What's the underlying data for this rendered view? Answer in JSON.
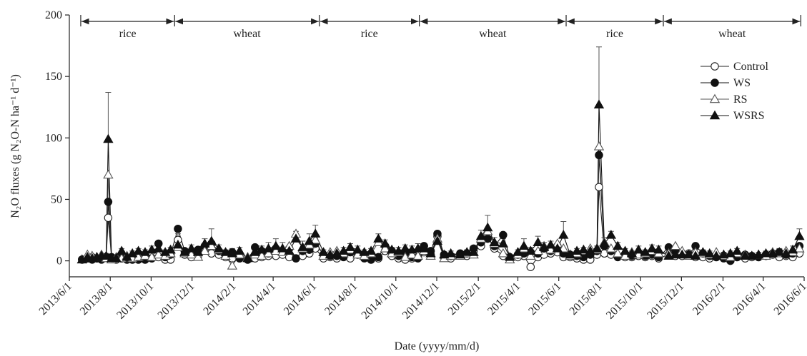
{
  "chart_data": {
    "type": "line",
    "xlabel": "Date (yyyy/mm/d)",
    "ylabel": "N₂O fluxes (g N₂O-N ha⁻¹ d⁻¹)",
    "xlim": [
      "2013/6/1",
      "2016/6/1"
    ],
    "xticks": [
      "2013/6/1",
      "2013/8/1",
      "2013/10/1",
      "2013/12/1",
      "2014/2/1",
      "2014/4/1",
      "2014/6/1",
      "2014/8/1",
      "2014/10/1",
      "2014/12/1",
      "2015/2/1",
      "2015/4/1",
      "2015/6/1",
      "2015/8/1",
      "2015/10/1",
      "2015/12/1",
      "2016/2/1",
      "2016/4/1",
      "2016/6/1"
    ],
    "ylim": [
      -13,
      200
    ],
    "yticks": [
      0,
      50,
      100,
      150,
      200
    ],
    "legend": "upper right",
    "seasons": [
      {
        "label": "rice",
        "start": "2013/6/18",
        "end": "2013/11/5"
      },
      {
        "label": "wheat",
        "start": "2013/11/5",
        "end": "2014/6/9"
      },
      {
        "label": "rice",
        "start": "2014/6/9",
        "end": "2014/11/5"
      },
      {
        "label": "wheat",
        "start": "2014/11/5",
        "end": "2015/6/12"
      },
      {
        "label": "rice",
        "start": "2015/6/12",
        "end": "2015/11/4"
      },
      {
        "label": "wheat",
        "start": "2015/11/4",
        "end": "2016/5/27"
      }
    ],
    "x": [
      "2013/6/20",
      "2013/6/28",
      "2013/7/5",
      "2013/7/12",
      "2013/7/19",
      "2013/7/26",
      "2013/7/29",
      "2013/8/3",
      "2013/8/10",
      "2013/8/18",
      "2013/8/26",
      "2013/9/3",
      "2013/9/12",
      "2013/9/22",
      "2013/10/2",
      "2013/10/12",
      "2013/10/22",
      "2013/10/30",
      "2013/11/10",
      "2013/11/20",
      "2013/11/30",
      "2013/12/10",
      "2013/12/20",
      "2013/12/30",
      "2014/1/10",
      "2014/1/20",
      "2014/1/30",
      "2014/2/10",
      "2014/2/22",
      "2014/3/5",
      "2014/3/15",
      "2014/3/25",
      "2014/4/5",
      "2014/4/15",
      "2014/4/25",
      "2014/5/5",
      "2014/5/15",
      "2014/5/25",
      "2014/6/3",
      "2014/6/15",
      "2014/6/25",
      "2014/7/5",
      "2014/7/15",
      "2014/7/25",
      "2014/8/5",
      "2014/8/15",
      "2014/8/25",
      "2014/9/5",
      "2014/9/15",
      "2014/9/25",
      "2014/10/5",
      "2014/10/15",
      "2014/10/25",
      "2014/11/3",
      "2014/11/12",
      "2014/11/22",
      "2014/12/2",
      "2014/12/12",
      "2014/12/22",
      "2015/1/5",
      "2015/1/15",
      "2015/1/25",
      "2015/2/5",
      "2015/2/15",
      "2015/2/25",
      "2015/3/10",
      "2015/3/20",
      "2015/4/1",
      "2015/4/10",
      "2015/4/20",
      "2015/5/1",
      "2015/5/10",
      "2015/5/20",
      "2015/5/30",
      "2015/6/8",
      "2015/6/18",
      "2015/6/28",
      "2015/7/8",
      "2015/7/18",
      "2015/7/28",
      "2015/7/31",
      "2015/8/8",
      "2015/8/18",
      "2015/8/28",
      "2015/9/8",
      "2015/9/18",
      "2015/9/28",
      "2015/10/8",
      "2015/10/18",
      "2015/10/28",
      "2015/11/12",
      "2015/11/22",
      "2015/12/2",
      "2015/12/12",
      "2015/12/22",
      "2016/1/2",
      "2016/1/12",
      "2016/1/22",
      "2016/2/2",
      "2016/2/12",
      "2016/2/22",
      "2016/3/5",
      "2016/3/15",
      "2016/3/25",
      "2016/4/5",
      "2016/4/15",
      "2016/4/25",
      "2016/5/5",
      "2016/5/15",
      "2016/5/25"
    ],
    "series": [
      {
        "name": "Control",
        "color": "#222222",
        "marker": "circle-open",
        "values": [
          1,
          2,
          3,
          2,
          2,
          3,
          35,
          2,
          1,
          2,
          1,
          1,
          1,
          1,
          2,
          3,
          1,
          1,
          17,
          5,
          3,
          4,
          10,
          6,
          5,
          3,
          2,
          2,
          1,
          2,
          3,
          4,
          4,
          5,
          3,
          2,
          4,
          6,
          10,
          2,
          3,
          2,
          4,
          2,
          5,
          3,
          1,
          2,
          8,
          4,
          2,
          1,
          2,
          3,
          7,
          5,
          20,
          3,
          2,
          5,
          4,
          8,
          12,
          20,
          10,
          4,
          2,
          3,
          4,
          -5,
          3,
          5,
          6,
          7,
          3,
          3,
          2,
          1,
          1,
          5,
          60,
          6,
          5,
          4,
          3,
          3,
          4,
          3,
          4,
          2,
          5,
          4,
          4,
          6,
          3,
          3,
          2,
          3,
          4,
          2,
          3,
          2,
          3,
          3,
          4,
          5,
          3,
          4,
          3,
          6
        ]
      },
      {
        "name": "WS",
        "color": "#111111",
        "marker": "circle-filled",
        "values": [
          1,
          2,
          1,
          2,
          1,
          3,
          48,
          3,
          2,
          2,
          1,
          1,
          1,
          1,
          2,
          14,
          3,
          5,
          26,
          8,
          6,
          9,
          12,
          14,
          8,
          6,
          7,
          2,
          1,
          11,
          8,
          6,
          10,
          8,
          10,
          2,
          8,
          9,
          14,
          5,
          4,
          4,
          3,
          7,
          6,
          2,
          1,
          3,
          12,
          8,
          4,
          5,
          3,
          2,
          12,
          8,
          22,
          5,
          4,
          6,
          6,
          10,
          15,
          18,
          12,
          21,
          3,
          5,
          6,
          7,
          6,
          10,
          8,
          12,
          6,
          5,
          4,
          3,
          5,
          8,
          86,
          12,
          8,
          3,
          5,
          4,
          6,
          4,
          5,
          3,
          11,
          8,
          6,
          5,
          12,
          6,
          4,
          3,
          2,
          0,
          3,
          5,
          4,
          3,
          5,
          6,
          7,
          5,
          6,
          12
        ]
      },
      {
        "name": "RS",
        "color": "#555555",
        "marker": "triangle-open",
        "values": [
          1,
          5,
          4,
          3,
          5,
          2,
          70,
          1,
          3,
          2,
          4,
          2,
          3,
          4,
          3,
          5,
          4,
          6,
          11,
          6,
          5,
          3,
          8,
          12,
          9,
          4,
          -4,
          5,
          3,
          5,
          4,
          6,
          8,
          7,
          12,
          22,
          10,
          13,
          17,
          4,
          7,
          8,
          6,
          9,
          5,
          4,
          6,
          15,
          10,
          6,
          7,
          3,
          5,
          4,
          8,
          4,
          18,
          2,
          4,
          4,
          6,
          5,
          18,
          24,
          14,
          6,
          1,
          5,
          10,
          4,
          8,
          12,
          9,
          14,
          10,
          4,
          6,
          8,
          10,
          9,
          93,
          15,
          10,
          6,
          4,
          7,
          5,
          6,
          8,
          6,
          6,
          12,
          8,
          4,
          7,
          6,
          5,
          7,
          4,
          3,
          6,
          5,
          4,
          5,
          4,
          7,
          6,
          8,
          7,
          10
        ]
      },
      {
        "name": "WSRS",
        "color": "#111111",
        "marker": "triangle-filled",
        "values": [
          1,
          3,
          2,
          3,
          4,
          4,
          99,
          2,
          2,
          8,
          3,
          6,
          8,
          7,
          9,
          10,
          7,
          9,
          13,
          7,
          10,
          7,
          14,
          16,
          10,
          7,
          6,
          8,
          2,
          7,
          9,
          10,
          12,
          10,
          8,
          18,
          11,
          16,
          22,
          7,
          5,
          6,
          8,
          11,
          9,
          7,
          8,
          18,
          14,
          9,
          8,
          10,
          9,
          10,
          10,
          6,
          16,
          5,
          6,
          5,
          7,
          7,
          20,
          27,
          15,
          14,
          3,
          7,
          12,
          8,
          15,
          11,
          13,
          10,
          21,
          5,
          8,
          9,
          8,
          10,
          127,
          14,
          21,
          12,
          8,
          6,
          9,
          7,
          10,
          9,
          4,
          5,
          5,
          5,
          4,
          7,
          6,
          4,
          5,
          6,
          8,
          4,
          4,
          5,
          6,
          6,
          7,
          6,
          9,
          20
        ],
        "errors": [
          1,
          1,
          1,
          1,
          1,
          2,
          38,
          1,
          1,
          2,
          1,
          2,
          2,
          2,
          3,
          3,
          2,
          2,
          9,
          3,
          3,
          2,
          4,
          10,
          3,
          2,
          4,
          3,
          1,
          2,
          3,
          5,
          6,
          5,
          4,
          6,
          5,
          6,
          7,
          2,
          2,
          2,
          3,
          3,
          3,
          2,
          2,
          4,
          3,
          2,
          3,
          3,
          3,
          4,
          3,
          2,
          6,
          2,
          2,
          2,
          2,
          3,
          5,
          10,
          4,
          4,
          1,
          2,
          6,
          3,
          5,
          4,
          3,
          3,
          11,
          2,
          2,
          2,
          2,
          2,
          47,
          5,
          3,
          3,
          2,
          2,
          3,
          2,
          3,
          3,
          2,
          4,
          2,
          2,
          3,
          2,
          2,
          2,
          2,
          2,
          2,
          2,
          2,
          2,
          2,
          2,
          3,
          2,
          3,
          6
        ]
      }
    ]
  }
}
